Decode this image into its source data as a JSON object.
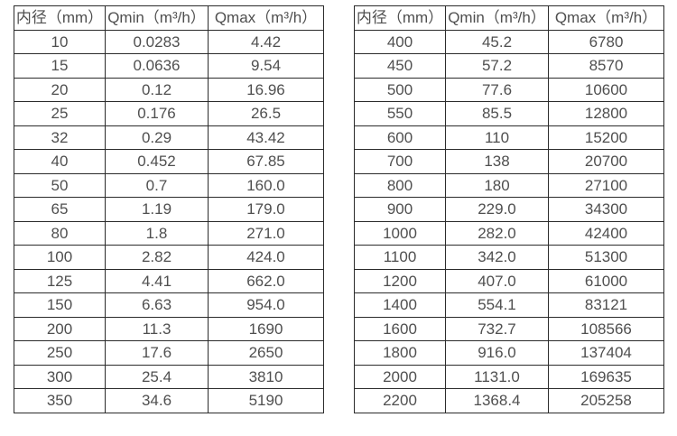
{
  "tables": [
    {
      "name": "small-diameters",
      "headers": [
        "内径（mm）",
        "Qmin（m³/h）",
        "Qmax（m³/h）"
      ],
      "rows": [
        [
          "10",
          "0.0283",
          "4.42"
        ],
        [
          "15",
          "0.0636",
          "9.54"
        ],
        [
          "20",
          "0.12",
          "16.96"
        ],
        [
          "25",
          "0.176",
          "26.5"
        ],
        [
          "32",
          "0.29",
          "43.42"
        ],
        [
          "40",
          "0.452",
          "67.85"
        ],
        [
          "50",
          "0.7",
          "160.0"
        ],
        [
          "65",
          "1.19",
          "179.0"
        ],
        [
          "80",
          "1.8",
          "271.0"
        ],
        [
          "100",
          "2.82",
          "424.0"
        ],
        [
          "125",
          "4.41",
          "662.0"
        ],
        [
          "150",
          "6.63",
          "954.0"
        ],
        [
          "200",
          "11.3",
          "1690"
        ],
        [
          "250",
          "17.6",
          "2650"
        ],
        [
          "300",
          "25.4",
          "3810"
        ],
        [
          "350",
          "34.6",
          "5190"
        ]
      ]
    },
    {
      "name": "large-diameters",
      "headers": [
        "内径（mm）",
        "Qmin（m³/h）",
        "Qmax（m³/h）"
      ],
      "rows": [
        [
          "400",
          "45.2",
          "6780"
        ],
        [
          "450",
          "57.2",
          "8570"
        ],
        [
          "500",
          "77.6",
          "10600"
        ],
        [
          "550",
          "85.5",
          "12800"
        ],
        [
          "600",
          "110",
          "15200"
        ],
        [
          "700",
          "138",
          "20700"
        ],
        [
          "800",
          "180",
          "27100"
        ],
        [
          "900",
          "229.0",
          "34300"
        ],
        [
          "1000",
          "282.0",
          "42400"
        ],
        [
          "1100",
          "342.0",
          "51300"
        ],
        [
          "1200",
          "407.0",
          "61000"
        ],
        [
          "1400",
          "554.1",
          "83121"
        ],
        [
          "1600",
          "732.7",
          "108566"
        ],
        [
          "1800",
          "916.0",
          "137404"
        ],
        [
          "2000",
          "1131.0",
          "169635"
        ],
        [
          "2200",
          "1368.4",
          "205258"
        ]
      ]
    }
  ],
  "colors": {
    "border": "#2b2b2b",
    "text": "#4f4f4f",
    "background": "#ffffff"
  }
}
